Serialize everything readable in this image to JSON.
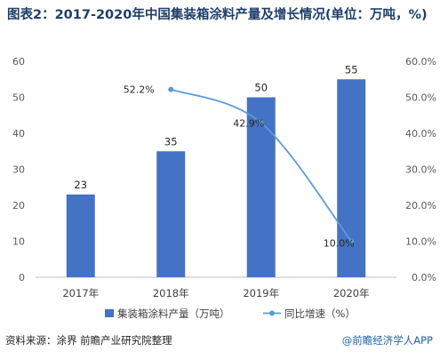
{
  "chart_data": {
    "type": "bar",
    "title": "图表2：2017-2020年中国集装箱涂料产量及增长情况(单位：万吨，%)",
    "categories": [
      "2017年",
      "2018年",
      "2019年",
      "2020年"
    ],
    "series": [
      {
        "name": "集装箱涂料产量（万吨）",
        "type": "bar",
        "axis": "left",
        "values": [
          23,
          35,
          50,
          55
        ],
        "labels": [
          "23",
          "35",
          "50",
          "55"
        ]
      },
      {
        "name": "同比增速（%）",
        "type": "line",
        "axis": "right",
        "values": [
          null,
          52.2,
          42.9,
          10.0
        ],
        "labels": [
          "",
          "52.2%",
          "42.9%",
          "10.0%"
        ]
      }
    ],
    "y_left": {
      "min": 0,
      "max": 60,
      "ticks": [
        "0",
        "10",
        "20",
        "30",
        "40",
        "50",
        "60"
      ]
    },
    "y_right": {
      "min": 0,
      "max": 60,
      "ticks": [
        "0.0%",
        "10.0%",
        "20.0%",
        "30.0%",
        "40.0%",
        "50.0%",
        "60.0%"
      ]
    },
    "grid": false,
    "legend_position": "bottom",
    "colors": {
      "bar": "#4472c4",
      "line": "#5b9bd5",
      "title": "#1f3f6b"
    }
  },
  "footer": {
    "source": "资料来源：涂界 前瞻产业研究院整理",
    "brand": "@前瞻经济学人APP"
  }
}
